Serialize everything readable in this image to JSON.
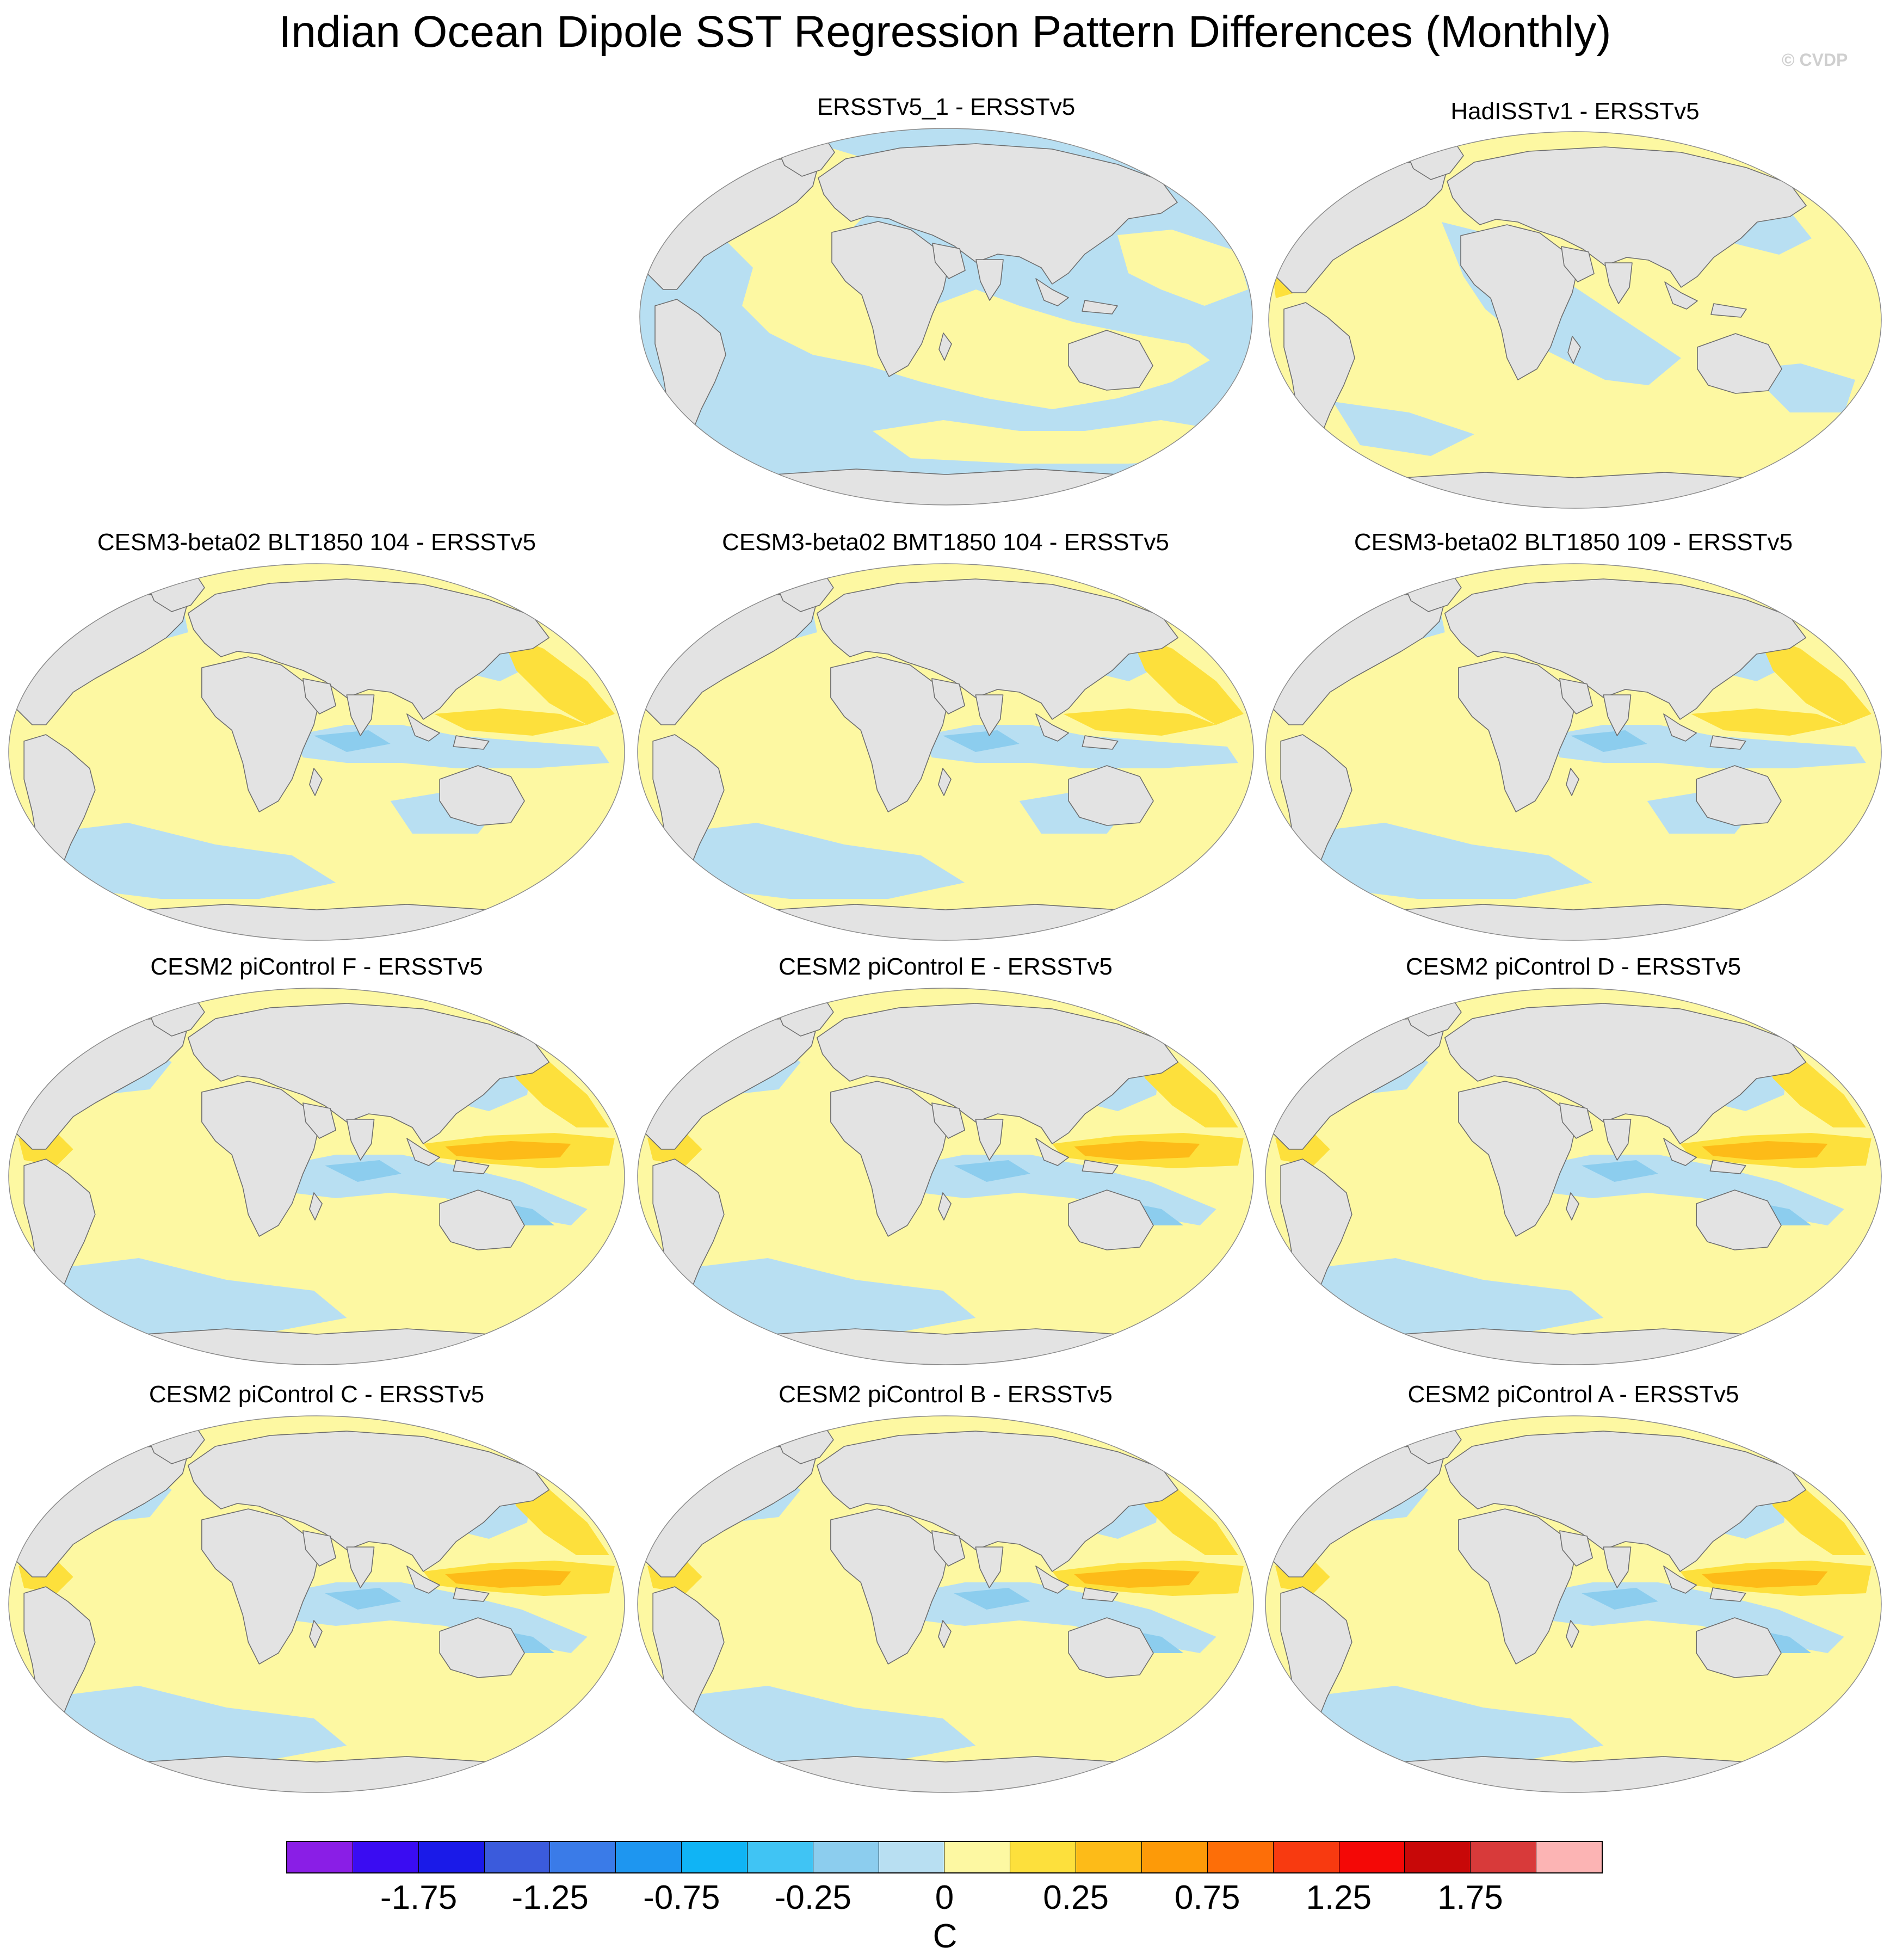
{
  "title": "Indian Ocean Dipole SST Regression Pattern Differences (Monthly)",
  "credit": "© CVDP",
  "panels": [
    {
      "title": "ERSSTv5_1 - ERSSTv5",
      "variant": 0
    },
    {
      "title": "HadISSTv1 - ERSSTv5",
      "variant": 1
    },
    {
      "title": "CESM3-beta02 BLT1850 104 - ERSSTv5",
      "variant": 2
    },
    {
      "title": "CESM3-beta02 BMT1850 104 - ERSSTv5",
      "variant": 2
    },
    {
      "title": "CESM3-beta02 BLT1850 109 - ERSSTv5",
      "variant": 2
    },
    {
      "title": "CESM2 piControl F - ERSSTv5",
      "variant": 3
    },
    {
      "title": "CESM2 piControl E - ERSSTv5",
      "variant": 3
    },
    {
      "title": "CESM2 piControl D - ERSSTv5",
      "variant": 3
    },
    {
      "title": "CESM2 piControl C - ERSSTv5",
      "variant": 3
    },
    {
      "title": "CESM2 piControl B - ERSSTv5",
      "variant": 3
    },
    {
      "title": "CESM2 piControl A - ERSSTv5",
      "variant": 3
    }
  ],
  "colorbar": {
    "colors": [
      "#8a1ee6",
      "#3a0cf2",
      "#1a1ae8",
      "#3b5bdc",
      "#3a7be8",
      "#1e96f0",
      "#10b4f5",
      "#40c4f4",
      "#8ccdee",
      "#b8dff2",
      "#fdf8a2",
      "#fde03c",
      "#fdbb18",
      "#fd9a08",
      "#fd6e08",
      "#f83a10",
      "#f40806",
      "#c80808",
      "#d83a3a",
      "#fcb4b4"
    ],
    "tick_labels": [
      "-1.75",
      "-1.25",
      "-0.75",
      "-0.25",
      "0",
      "0.25",
      "0.75",
      "1.25",
      "1.75"
    ],
    "units": "C"
  },
  "colors": {
    "land": "#e3e3e3",
    "coast": "#6e6e6e",
    "pale_yellow": "#fdf8a2",
    "yellow": "#fde03c",
    "orange": "#fdbb18",
    "pale_blue": "#b8dff2",
    "blue": "#8ccdee",
    "sky_blue": "#40c4f4"
  }
}
